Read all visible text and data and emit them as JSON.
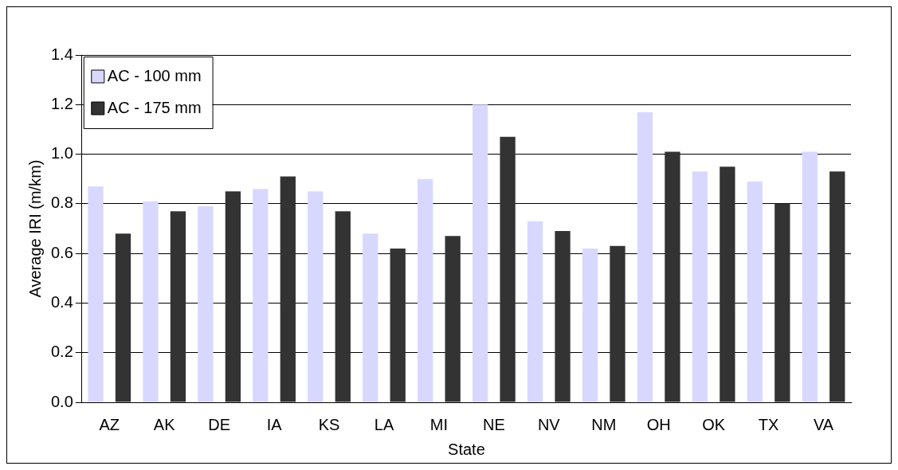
{
  "chart_data": {
    "type": "bar",
    "xlabel": "State",
    "ylabel": "Average IRI (m/km)",
    "categories": [
      "AZ",
      "AK",
      "DE",
      "IA",
      "KS",
      "LA",
      "MI",
      "NE",
      "NV",
      "NM",
      "OH",
      "OK",
      "TX",
      "VA"
    ],
    "series": [
      {
        "name": "AC - 100 mm",
        "color": "#d8d8ff",
        "values": [
          0.87,
          0.81,
          0.79,
          0.86,
          0.85,
          0.68,
          0.9,
          1.2,
          0.73,
          0.62,
          1.17,
          0.93,
          0.89,
          1.01
        ]
      },
      {
        "name": "AC - 175 mm",
        "color": "#333333",
        "values": [
          0.68,
          0.77,
          0.85,
          0.91,
          0.77,
          0.62,
          0.67,
          1.07,
          0.69,
          0.63,
          1.01,
          0.95,
          0.8,
          0.93
        ]
      }
    ],
    "ylim": [
      0,
      1.4
    ],
    "yticks": [
      {
        "value": 0,
        "label": "0.0"
      },
      0.2,
      0.4,
      0.6,
      0.8,
      {
        "value": 1,
        "label": "1.0"
      },
      1.2,
      1.4
    ],
    "grid": "y",
    "legend": "top left"
  }
}
